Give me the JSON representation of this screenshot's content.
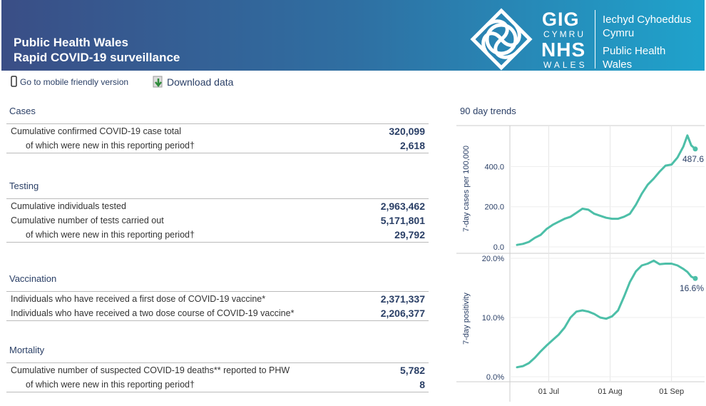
{
  "header": {
    "title_line1": "Public Health Wales",
    "title_line2": "Rapid COVID-19 surveillance",
    "logo": {
      "gig": "GIG",
      "cymru": "CYMRU",
      "nhs": "NHS",
      "wales": "WALES"
    },
    "org_lines": [
      "Iechyd Cyhoeddus",
      "Cymru",
      "Public Health",
      "Wales"
    ]
  },
  "toolbar": {
    "mobile_link": "Go to mobile friendly version",
    "download": "Download data"
  },
  "sections": {
    "cases": {
      "title": "Cases",
      "rows": [
        {
          "label": "Cumulative confirmed COVID-19 case total",
          "value": "320,099"
        },
        {
          "label": "of which were new in this reporting period†",
          "value": "2,618"
        }
      ]
    },
    "testing": {
      "title": "Testing",
      "rows": [
        {
          "label": "Cumulative individuals tested",
          "value": "2,963,462"
        },
        {
          "label": "Cumulative number of tests carried out",
          "value": "5,171,801"
        },
        {
          "label": "of which were new in this reporting period†",
          "value": "29,792"
        }
      ]
    },
    "vaccination": {
      "title": "Vaccination",
      "rows": [
        {
          "label": "Individuals who have received a first dose of COVID-19 vaccine*",
          "value": "2,371,337"
        },
        {
          "label": "Individuals who have received a two dose course of COVID-19 vaccine*",
          "value": "2,206,377"
        }
      ]
    },
    "mortality": {
      "title": "Mortality",
      "rows": [
        {
          "label": "Cumulative number of suspected COVID-19 deaths** reported to PHW",
          "value": "5,782"
        },
        {
          "label": "of which were new in this reporting period†",
          "value": "8"
        }
      ]
    }
  },
  "trends": {
    "title": "90 day trends",
    "x_ticks": [
      "01 Jul",
      "01 Aug",
      "01 Sep"
    ],
    "accent": "#4dbfa8"
  },
  "chart_data": [
    {
      "type": "line",
      "ylabel": "7-day cases per 100,000",
      "yticks": [
        "0.0",
        "200.0",
        "400.0"
      ],
      "ylim": [
        0,
        590
      ],
      "end_label": "487.6",
      "x": [
        0,
        3,
        6,
        9,
        12,
        15,
        18,
        21,
        24,
        27,
        30,
        33,
        36,
        39,
        42,
        45,
        48,
        51,
        54,
        57,
        60,
        63,
        66,
        69,
        72,
        75,
        78,
        81,
        84,
        86,
        88,
        90
      ],
      "values": [
        10,
        15,
        25,
        45,
        60,
        90,
        110,
        125,
        140,
        150,
        170,
        190,
        185,
        165,
        155,
        145,
        140,
        140,
        150,
        165,
        210,
        265,
        310,
        340,
        375,
        405,
        410,
        445,
        500,
        555,
        505,
        487.6
      ]
    },
    {
      "type": "line",
      "ylabel": "7-day positivity",
      "yticks": [
        "0.0%",
        "10.0%",
        "20.0%"
      ],
      "ylim": [
        0,
        20
      ],
      "end_label": "16.6%",
      "x": [
        0,
        3,
        6,
        9,
        12,
        15,
        18,
        21,
        24,
        27,
        30,
        33,
        36,
        39,
        42,
        45,
        48,
        51,
        54,
        57,
        60,
        63,
        66,
        69,
        72,
        75,
        78,
        81,
        84,
        86,
        88,
        90
      ],
      "values": [
        1.6,
        1.8,
        2.3,
        3.2,
        4.3,
        5.3,
        6.2,
        7.1,
        8.3,
        10.0,
        11.0,
        11.2,
        11.0,
        10.6,
        10.0,
        9.8,
        10.2,
        11.2,
        13.5,
        16.0,
        17.8,
        18.8,
        19.1,
        19.6,
        19.0,
        19.1,
        19.1,
        18.8,
        18.2,
        17.7,
        16.9,
        16.6
      ]
    }
  ]
}
